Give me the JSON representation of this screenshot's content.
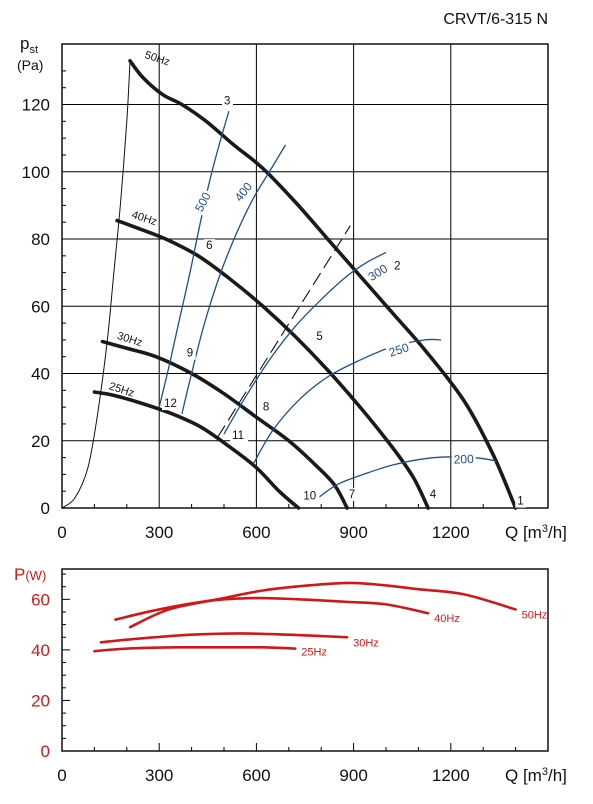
{
  "model": "CRVT/6-315 N",
  "chart_data": [
    {
      "type": "line",
      "title": "CRVT/6-315 N",
      "ylabel_main": "p",
      "ylabel_sub": "st",
      "yunit": "(Pa)",
      "xlabel": "Q [m³/h]",
      "xlim": [
        0,
        1500
      ],
      "ylim": [
        0,
        138
      ],
      "xticks": [
        "0",
        "300",
        "600",
        "900",
        "1200"
      ],
      "yticks": [
        "0",
        "20",
        "40",
        "60",
        "80",
        "100",
        "120"
      ],
      "grid": true,
      "series": [
        {
          "name": "50Hz",
          "kind": "fan",
          "points": [
            [
              210,
              133
            ],
            [
              250,
              128
            ],
            [
              310,
              123
            ],
            [
              370,
              120
            ],
            [
              445,
              115
            ],
            [
              530,
              108
            ],
            [
              620,
              101
            ],
            [
              720,
              91
            ],
            [
              820,
              80
            ],
            [
              920,
              69
            ],
            [
              1020,
              58
            ],
            [
              1120,
              47
            ],
            [
              1240,
              32
            ],
            [
              1330,
              16
            ],
            [
              1400,
              0
            ]
          ]
        },
        {
          "name": "40Hz",
          "kind": "fan",
          "points": [
            [
              170,
              85.5
            ],
            [
              240,
              83
            ],
            [
              320,
              80
            ],
            [
              420,
              75
            ],
            [
              520,
              68
            ],
            [
              620,
              60
            ],
            [
              720,
              51
            ],
            [
              820,
              41
            ],
            [
              920,
              30
            ],
            [
              1020,
              18
            ],
            [
              1085,
              9
            ],
            [
              1130,
              0
            ]
          ]
        },
        {
          "name": "30Hz",
          "kind": "fan",
          "points": [
            [
              125,
              49.5
            ],
            [
              200,
              47.5
            ],
            [
              290,
              45
            ],
            [
              400,
              40
            ],
            [
              500,
              34
            ],
            [
              600,
              27
            ],
            [
              700,
              20
            ],
            [
              780,
              13
            ],
            [
              840,
              7
            ],
            [
              880,
              0
            ]
          ]
        },
        {
          "name": "25Hz",
          "kind": "fan",
          "points": [
            [
              100,
              34.5
            ],
            [
              160,
              33.5
            ],
            [
              250,
              31
            ],
            [
              340,
              28
            ],
            [
              430,
              24
            ],
            [
              520,
              18
            ],
            [
              600,
              12
            ],
            [
              670,
              5
            ],
            [
              730,
              0
            ]
          ]
        },
        {
          "name": "500",
          "kind": "system",
          "points": [
            [
              300,
              30
            ],
            [
              330,
              42
            ],
            [
              360,
              55
            ],
            [
              395,
              70
            ],
            [
              425,
              84
            ],
            [
              455,
              97
            ],
            [
              485,
              108
            ],
            [
              515,
              118
            ]
          ]
        },
        {
          "name": "400",
          "kind": "system",
          "points": [
            [
              370,
              28
            ],
            [
              400,
              40
            ],
            [
              440,
              55
            ],
            [
              490,
              70
            ],
            [
              540,
              82
            ],
            [
              590,
              92
            ],
            [
              640,
              100
            ],
            [
              690,
              108
            ]
          ]
        },
        {
          "name": "300",
          "kind": "system",
          "points": [
            [
              500,
              22
            ],
            [
              560,
              32
            ],
            [
              640,
              44
            ],
            [
              720,
              54
            ],
            [
              800,
              62
            ],
            [
              880,
              69
            ],
            [
              940,
              73
            ],
            [
              1000,
              76
            ]
          ]
        },
        {
          "name": "250",
          "kind": "system",
          "points": [
            [
              590,
              13
            ],
            [
              650,
              23
            ],
            [
              730,
              32
            ],
            [
              820,
              39
            ],
            [
              920,
              44
            ],
            [
              1020,
              48
            ],
            [
              1120,
              50
            ],
            [
              1170,
              50
            ]
          ]
        },
        {
          "name": "200",
          "kind": "system",
          "points": [
            [
              790,
              3
            ],
            [
              850,
              7
            ],
            [
              930,
              10
            ],
            [
              1030,
              13
            ],
            [
              1150,
              15
            ],
            [
              1270,
              15
            ],
            [
              1340,
              14
            ]
          ]
        },
        {
          "name": "",
          "kind": "dashed",
          "points": [
            [
              480,
              21
            ],
            [
              890,
              84
            ]
          ]
        },
        {
          "name": "",
          "kind": "envelope",
          "points": [
            [
              0,
              0
            ],
            [
              40,
              3
            ],
            [
              80,
              12
            ],
            [
              110,
              28
            ],
            [
              140,
              50
            ],
            [
              160,
              70
            ],
            [
              180,
              90
            ],
            [
              200,
              115
            ],
            [
              210,
              133
            ]
          ]
        }
      ],
      "point_labels": [
        {
          "text": "1",
          "x": 1405,
          "y": 1
        },
        {
          "text": "2",
          "x": 1025,
          "y": 71
        },
        {
          "text": "3",
          "x": 500,
          "y": 120
        },
        {
          "text": "4",
          "x": 1135,
          "y": 3
        },
        {
          "text": "5",
          "x": 785,
          "y": 50
        },
        {
          "text": "6",
          "x": 445,
          "y": 77
        },
        {
          "text": "7",
          "x": 885,
          "y": 3
        },
        {
          "text": "8",
          "x": 620,
          "y": 29
        },
        {
          "text": "9",
          "x": 385,
          "y": 45
        },
        {
          "text": "10",
          "x": 745,
          "y": 2.5
        },
        {
          "text": "11",
          "x": 525,
          "y": 20.5
        },
        {
          "text": "12",
          "x": 315,
          "y": 30
        }
      ]
    },
    {
      "type": "line",
      "ylabel_main": "P",
      "yunit": "(W)",
      "xlabel": "Q [m³/h]",
      "xlim": [
        0,
        1500
      ],
      "ylim": [
        0,
        72
      ],
      "xticks": [
        "0",
        "300",
        "600",
        "900",
        "1200"
      ],
      "yticks": [
        "0",
        "20",
        "40",
        "60"
      ],
      "grid": false,
      "series": [
        {
          "name": "50Hz",
          "points": [
            [
              210,
              49
            ],
            [
              330,
              56
            ],
            [
              480,
              60
            ],
            [
              620,
              63.5
            ],
            [
              760,
              65.5
            ],
            [
              890,
              66.5
            ],
            [
              1000,
              65.5
            ],
            [
              1100,
              64
            ],
            [
              1240,
              62
            ],
            [
              1400,
              56
            ]
          ]
        },
        {
          "name": "40Hz",
          "points": [
            [
              165,
              52
            ],
            [
              300,
              56
            ],
            [
              460,
              59.5
            ],
            [
              600,
              60.5
            ],
            [
              730,
              60
            ],
            [
              880,
              59
            ],
            [
              1000,
              58
            ],
            [
              1130,
              54.5
            ]
          ]
        },
        {
          "name": "30Hz",
          "points": [
            [
              120,
              43
            ],
            [
              240,
              44.5
            ],
            [
              400,
              46
            ],
            [
              550,
              46.5
            ],
            [
              700,
              46
            ],
            [
              880,
              45
            ]
          ]
        },
        {
          "name": "25Hz",
          "points": [
            [
              100,
              39.5
            ],
            [
              200,
              40.5
            ],
            [
              350,
              41
            ],
            [
              500,
              41
            ],
            [
              620,
              41
            ],
            [
              720,
              40.5
            ]
          ]
        }
      ]
    }
  ]
}
